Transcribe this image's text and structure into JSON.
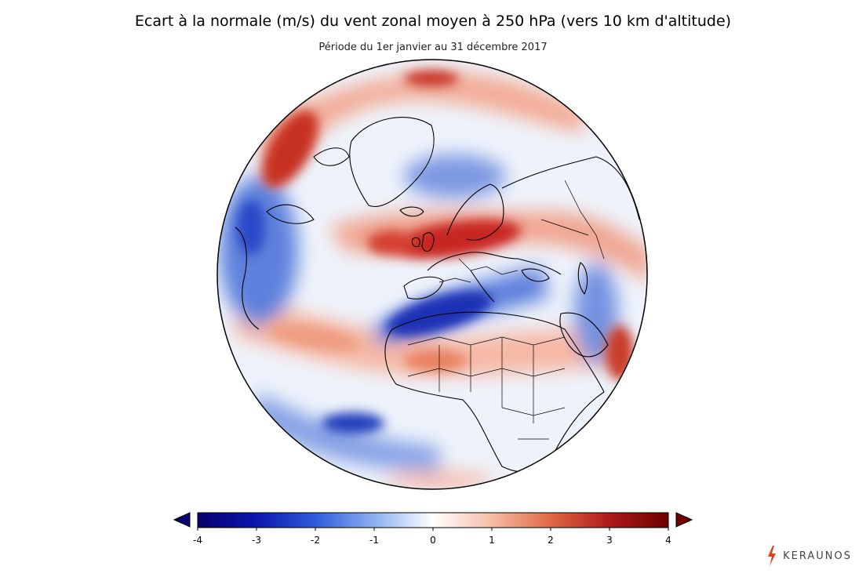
{
  "header": {
    "title": "Ecart à la normale (m/s) du vent zonal moyen à 250 hPa (vers 10 km d'altitude)",
    "subtitle": "Période du 1er janvier au 31 décembre 2017"
  },
  "colorbar": {
    "ticks": [
      "-4",
      "-3",
      "-2",
      "-1",
      "0",
      "1",
      "2",
      "3",
      "4"
    ],
    "min": -4,
    "max": 4,
    "extend": "both"
  },
  "logo": {
    "text": "KERAUNOS"
  },
  "colors": {
    "neg_strong": "#08006e",
    "neg": "#2650d8",
    "neutral": "#ffffff",
    "pos": "#e06040",
    "pos_strong": "#6e0000"
  }
}
